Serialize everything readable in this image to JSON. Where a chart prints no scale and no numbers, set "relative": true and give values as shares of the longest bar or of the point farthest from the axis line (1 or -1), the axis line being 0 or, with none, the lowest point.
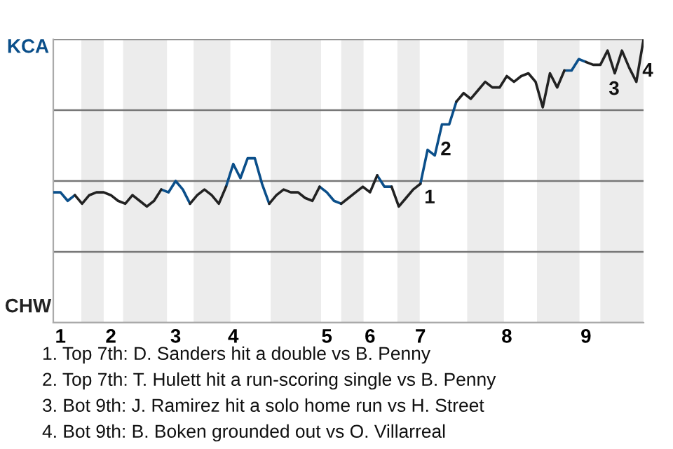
{
  "chart_data": {
    "type": "line",
    "relative": true,
    "categories": [
      null,
      "1",
      null,
      null,
      null,
      null,
      null,
      null,
      "2",
      null,
      null,
      null,
      null,
      null,
      null,
      null,
      null,
      "3",
      null,
      null,
      null,
      null,
      null,
      null,
      null,
      "4",
      null,
      null,
      null,
      null,
      null,
      null,
      null,
      null,
      null,
      null,
      null,
      null,
      "5",
      null,
      null,
      null,
      null,
      null,
      "6",
      null,
      null,
      null,
      null,
      null,
      null,
      "7",
      null,
      null,
      null,
      null,
      null,
      null,
      null,
      null,
      null,
      null,
      null,
      "8",
      null,
      null,
      null,
      null,
      null,
      null,
      null,
      null,
      null,
      null,
      "9",
      null,
      null,
      null,
      null,
      null,
      null,
      null,
      null
    ],
    "series": [
      {
        "color": "#0b4f8a",
        "values": [
          0.46,
          0.46,
          0.43,
          0.45,
          null,
          null,
          null,
          null,
          null,
          null,
          null,
          null,
          null,
          null,
          null,
          0.47,
          0.46,
          0.5,
          0.47,
          0.42,
          null,
          null,
          null,
          null,
          0.48,
          0.56,
          0.51,
          0.58,
          0.58,
          0.49,
          0.42,
          null,
          null,
          null,
          null,
          null,
          null,
          0.48,
          0.46,
          0.43,
          0.42,
          null,
          null,
          null,
          null,
          0.52,
          0.48,
          0.48,
          null,
          null,
          null,
          0.49,
          0.61,
          0.59,
          0.7,
          0.7,
          0.78,
          null,
          null,
          null,
          null,
          null,
          null,
          null,
          null,
          null,
          null,
          null,
          null,
          null,
          null,
          0.89,
          0.89,
          0.93,
          0.92,
          null,
          null,
          null,
          null,
          null,
          null,
          null,
          null
        ]
      },
      {
        "color": "#222222",
        "values": [
          null,
          null,
          null,
          0.45,
          0.42,
          0.45,
          0.46,
          0.46,
          0.45,
          0.43,
          0.42,
          0.45,
          0.43,
          0.41,
          0.43,
          0.47,
          null,
          null,
          null,
          0.42,
          0.45,
          0.47,
          0.45,
          0.42,
          0.48,
          null,
          null,
          null,
          null,
          null,
          0.42,
          0.45,
          0.47,
          0.46,
          0.46,
          0.44,
          0.43,
          0.48,
          null,
          null,
          0.42,
          0.44,
          0.46,
          0.48,
          0.46,
          0.52,
          null,
          0.48,
          0.41,
          0.44,
          0.47,
          0.49,
          null,
          null,
          null,
          null,
          0.78,
          0.81,
          0.79,
          0.82,
          0.85,
          0.83,
          0.83,
          0.87,
          0.85,
          0.87,
          0.88,
          0.85,
          0.76,
          0.88,
          0.83,
          0.89,
          null,
          null,
          0.92,
          0.91,
          0.91,
          0.96,
          0.88,
          0.96,
          0.9,
          0.85,
          1.0
        ]
      }
    ],
    "grid": "y",
    "annotations": [
      {
        "text": "1",
        "x": "7",
        "y": 0.49
      },
      "KCA",
      "CHW",
      "2",
      "3",
      "4",
      "1. Top 7th: D. Sanders hit a double vs B. Penny",
      "2. Top 7th: T. Hulett hit a run-scoring single vs B. Penny",
      "3. Bot 9th: J. Ramirez hit a solo home run vs H. Street",
      "4. Bot 9th: B. Boken grounded out vs O. Villarreal"
    ]
  }
}
